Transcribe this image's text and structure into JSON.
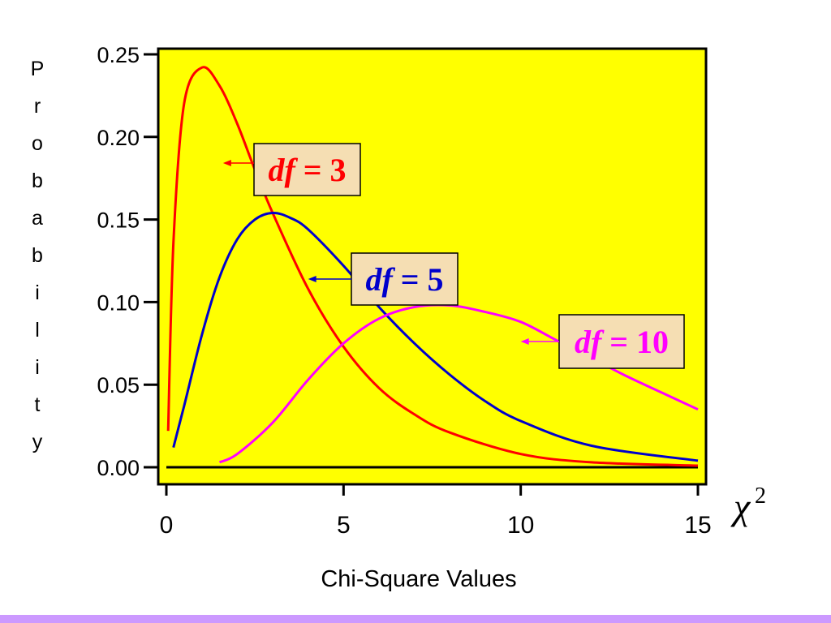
{
  "colors": {
    "plot_background": "#ffff00",
    "axis": "#000000",
    "label_box": "#f5deb3",
    "bottom_band": "#cc99ff"
  },
  "chart_data": {
    "type": "line",
    "title": "",
    "xlabel": "Chi-Square Values",
    "ylabel": "Probability",
    "x_axis_symbol": "χ",
    "x_axis_symbol_superscript": "2",
    "xlim": [
      0,
      15
    ],
    "ylim": [
      0,
      0.25
    ],
    "xticks": [
      0,
      5,
      10,
      15
    ],
    "xtick_labels": [
      "0",
      "5",
      "10",
      "15"
    ],
    "yticks": [
      0,
      0.05,
      0.1,
      0.15,
      0.2,
      0.25
    ],
    "ytick_labels": [
      "0.00",
      "0.05",
      "0.10",
      "0.15",
      "0.20",
      "0.25"
    ],
    "grid": false,
    "series": [
      {
        "name": "df = 3",
        "df": 3,
        "color": "#ff0000",
        "x": [
          0.05,
          0.2,
          0.5,
          1.0,
          1.5,
          2.0,
          2.5,
          3.0,
          4.0,
          5.0,
          6.0,
          7.0,
          8.0,
          10.0,
          12.0,
          15.0
        ],
        "y": [
          0.022,
          0.136,
          0.22,
          0.242,
          0.231,
          0.208,
          0.18,
          0.154,
          0.108,
          0.073,
          0.048,
          0.032,
          0.021,
          0.008,
          0.003,
          0.001
        ]
      },
      {
        "name": "df = 5",
        "df": 5,
        "color": "#0000cc",
        "x": [
          0.2,
          0.5,
          1.0,
          1.5,
          2.0,
          2.5,
          3.0,
          3.5,
          4.0,
          5.0,
          6.0,
          7.0,
          8.0,
          9.0,
          10.0,
          12.0,
          15.0
        ],
        "y": [
          0.012,
          0.037,
          0.08,
          0.115,
          0.138,
          0.15,
          0.154,
          0.151,
          0.144,
          0.122,
          0.097,
          0.075,
          0.056,
          0.04,
          0.028,
          0.013,
          0.004
        ]
      },
      {
        "name": "df = 10",
        "df": 10,
        "color": "#ff00ff",
        "x": [
          1.5,
          2.0,
          3.0,
          4.0,
          5.0,
          6.0,
          7.0,
          8.0,
          9.0,
          10.0,
          11.0,
          12.0,
          13.0,
          14.0,
          15.0
        ],
        "y": [
          0.003,
          0.008,
          0.027,
          0.053,
          0.075,
          0.09,
          0.097,
          0.098,
          0.094,
          0.088,
          0.077,
          0.066,
          0.055,
          0.045,
          0.035
        ]
      }
    ],
    "annotations": [
      {
        "label_prefix": "df",
        "label_suffix": "= 3",
        "color": "#ff0000",
        "arrow_to": [
          1.6,
          0.192
        ]
      },
      {
        "label_prefix": "df",
        "label_suffix": "= 5",
        "color": "#0000cc",
        "arrow_to": [
          4.0,
          0.116
        ]
      },
      {
        "label_prefix": "df",
        "label_suffix": "= 10",
        "color": "#ff00ff",
        "arrow_to": [
          10.0,
          0.07
        ]
      }
    ]
  }
}
